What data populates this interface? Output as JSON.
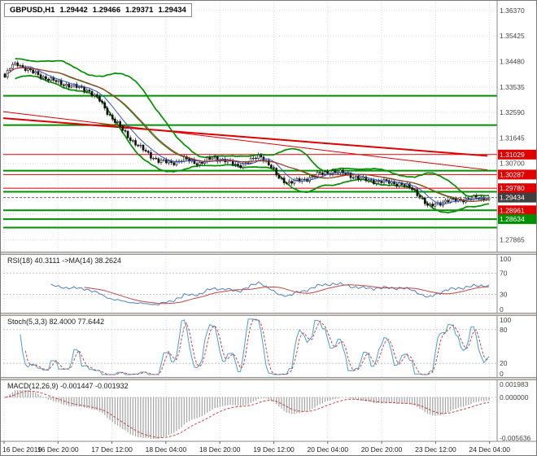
{
  "header": {
    "symbol": "GBPUSD,H1",
    "open": "1.29442",
    "high": "1.29466",
    "low": "1.29371",
    "close": "1.29434"
  },
  "panels": {
    "rsi": {
      "label": "RSI(18) 40.3111 ->MA(14) 38.2624",
      "axis": [
        "100",
        "70",
        "30",
        "0"
      ],
      "levels": [
        70,
        30
      ],
      "colors": {
        "main": "#4f81bd",
        "signal": "#c04646"
      },
      "last": {
        "rsi": 40.3111,
        "ma": 38.2624
      }
    },
    "stoch": {
      "label": "Stoch(5,3,3) 82.4000 77.6442",
      "axis": [
        "100",
        "80",
        "20",
        "0"
      ],
      "levels": [
        80,
        20
      ],
      "colors": {
        "main": "#49a0cc",
        "signal": "#cc4444"
      },
      "last": {
        "k": 82.4,
        "d": 77.6442
      }
    },
    "macd": {
      "label": "MACD(12,26,9) -0.001447 -0.001932",
      "axis": [
        "0.001983",
        "0.000000",
        "-0.005636"
      ],
      "range": [
        -0.005636,
        0.001983
      ],
      "colors": {
        "histogram": "#a9a9a9",
        "signal": "#cc4444"
      },
      "last": {
        "macd": -0.001447,
        "signal": -0.001932
      }
    }
  },
  "time_axis": {
    "labels": [
      "16 Dec 2019",
      "16 Dec 20:00",
      "17 Dec 12:00",
      "18 Dec 04:00",
      "18 Dec 20:00",
      "19 Dec 12:00",
      "20 Dec 04:00",
      "20 Dec 20:00",
      "23 Dec 12:00",
      "24 Dec 04:00"
    ]
  },
  "chart_data": [
    {
      "type": "candlestick",
      "symbol": "GBPUSD",
      "timeframe": "H1",
      "bars": 190,
      "ylim": [
        1.2743,
        1.3667
      ],
      "gridline_prices": [
        1.3637,
        1.35425,
        1.3448,
        1.33535,
        1.3259,
        1.31645,
        1.307,
        1.29755,
        1.2881,
        1.27865
      ],
      "last_ohlc": {
        "open": 1.29442,
        "high": 1.29466,
        "low": 1.29371,
        "close": 1.29434
      },
      "price_path": [
        [
          0.0,
          1.339
        ],
        [
          0.012,
          1.3428
        ],
        [
          0.025,
          1.3442
        ],
        [
          0.05,
          1.3414
        ],
        [
          0.08,
          1.339
        ],
        [
          0.11,
          1.337
        ],
        [
          0.14,
          1.3356
        ],
        [
          0.17,
          1.3344
        ],
        [
          0.195,
          1.3305
        ],
        [
          0.215,
          1.3252
        ],
        [
          0.232,
          1.3218
        ],
        [
          0.255,
          1.3168
        ],
        [
          0.275,
          1.3136
        ],
        [
          0.3,
          1.31
        ],
        [
          0.32,
          1.3078
        ],
        [
          0.345,
          1.3072
        ],
        [
          0.37,
          1.3086
        ],
        [
          0.4,
          1.307
        ],
        [
          0.43,
          1.309
        ],
        [
          0.455,
          1.3082
        ],
        [
          0.48,
          1.306
        ],
        [
          0.505,
          1.3078
        ],
        [
          0.528,
          1.31
        ],
        [
          0.548,
          1.3062
        ],
        [
          0.565,
          1.3016
        ],
        [
          0.585,
          1.3
        ],
        [
          0.615,
          1.3008
        ],
        [
          0.645,
          1.3028
        ],
        [
          0.675,
          1.304
        ],
        [
          0.705,
          1.3032
        ],
        [
          0.735,
          1.3012
        ],
        [
          0.765,
          1.3005
        ],
        [
          0.795,
          1.3
        ],
        [
          0.82,
          1.2993
        ],
        [
          0.845,
          1.2972
        ],
        [
          0.862,
          1.2938
        ],
        [
          0.875,
          1.2907
        ],
        [
          0.89,
          1.2921
        ],
        [
          0.91,
          1.293
        ],
        [
          0.94,
          1.2936
        ],
        [
          0.97,
          1.294
        ],
        [
          1.0,
          1.29434
        ]
      ],
      "horizontal_lines": [
        {
          "price": 1.3321,
          "color": "#009000",
          "width": 2
        },
        {
          "price": 1.3212,
          "color": "#009000",
          "width": 2
        },
        {
          "price": 1.31029,
          "color": "#e00000",
          "width": 1,
          "tag": "1.31029",
          "tag_color": "#e00000"
        },
        {
          "price": 1.3043,
          "color": "#009000",
          "width": 2
        },
        {
          "price": 1.30287,
          "color": "#e00000",
          "width": 1,
          "tag": "1.30287",
          "tag_color": "#e00000"
        },
        {
          "price": 1.2978,
          "color": "#e00000",
          "width": 1,
          "tag": "1.29780",
          "tag_color": "#e00000"
        },
        {
          "price": 1.2965,
          "color": "#009000",
          "width": 2
        },
        {
          "price": 1.28961,
          "color": "#009000",
          "width": 2,
          "tag": "1.28961",
          "tag_color": "#e00000"
        },
        {
          "price": 1.28634,
          "color": "#009000",
          "width": 2,
          "tag": "1.28634",
          "tag_color": "#009000"
        },
        {
          "price": 1.2832,
          "color": "#009000",
          "width": 2
        }
      ],
      "trend_lines": [
        {
          "from": [
            0.0,
            1.3262
          ],
          "to": [
            1.0,
            1.3046
          ],
          "color": "#e00000",
          "width": 1
        },
        {
          "from": [
            0.0,
            1.3238
          ],
          "to": [
            1.0,
            1.3098
          ],
          "color": "#e00000",
          "width": 2
        }
      ],
      "current_price": {
        "value": 1.29434,
        "label": "1.29434",
        "tag_color": "#3f3f3f"
      },
      "overlays": {
        "bollinger": {
          "period": 20,
          "deviation": 2,
          "color": "#009000"
        },
        "ma_fast": {
          "period": 8,
          "color": "#2f55c4"
        },
        "ma_slow": {
          "period": 21,
          "color": "#c23030"
        }
      }
    },
    {
      "type": "line",
      "name": "RSI(18) with MA(14)",
      "derived_from": "closes",
      "period": 18,
      "ma_period": 14,
      "range": [
        0,
        100
      ]
    },
    {
      "type": "line",
      "name": "Stochastic(5,3,3)",
      "derived_from": "closes",
      "k_period": 5,
      "slowing": 3,
      "d_period": 3,
      "range": [
        0,
        100
      ]
    },
    {
      "type": "bar",
      "name": "MACD(12,26,9)",
      "derived_from": "closes",
      "fast": 12,
      "slow": 26,
      "signal": 9,
      "range": [
        -0.005636,
        0.001983
      ]
    }
  ]
}
